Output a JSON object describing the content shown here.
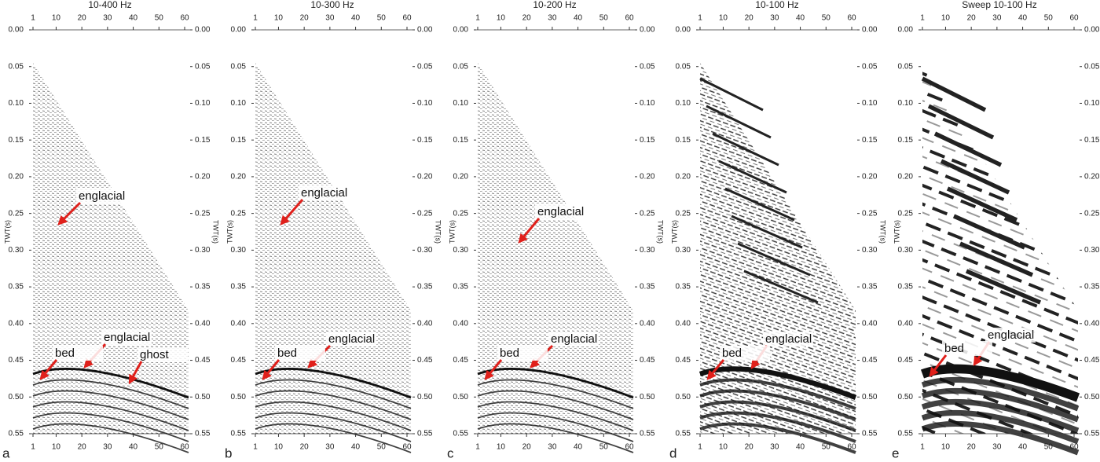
{
  "axes": {
    "x_ticks": [
      "1",
      "10",
      "20",
      "30",
      "40",
      "50",
      "60"
    ],
    "y_ticks": [
      "0.00",
      "0.05",
      "0.10",
      "0.15",
      "0.20",
      "0.25",
      "0.30",
      "0.35",
      "0.40",
      "0.45",
      "0.50",
      "0.55"
    ],
    "y_label": "TWT(s)"
  },
  "panels": [
    {
      "letter": "a",
      "title": "10-400 Hz",
      "annotations": [
        "englacial",
        "englacial",
        "bed",
        "ghost"
      ]
    },
    {
      "letter": "b",
      "title": "10-300 Hz",
      "annotations": [
        "englacial",
        "englacial",
        "bed"
      ]
    },
    {
      "letter": "c",
      "title": "10-200 Hz",
      "annotations": [
        "englacial",
        "englacial",
        "bed"
      ]
    },
    {
      "letter": "d",
      "title": "10-100 Hz",
      "annotations": [
        "englacial",
        "bed"
      ]
    },
    {
      "letter": "e",
      "title": "Sweep 10-100 Hz",
      "annotations": [
        "englacial",
        "bed"
      ]
    }
  ]
}
